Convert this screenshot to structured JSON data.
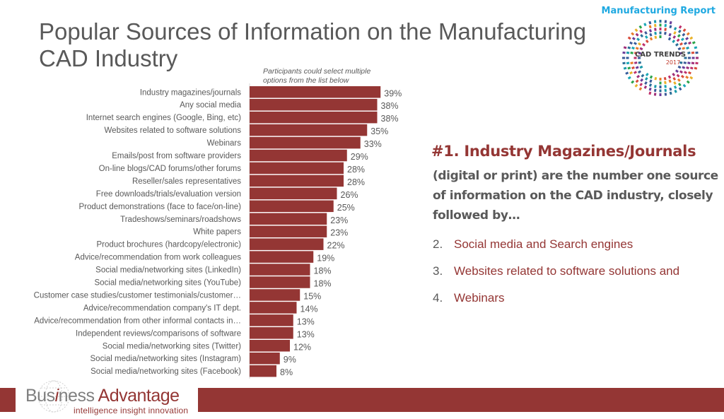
{
  "header": {
    "title": "Popular Sources of Information on the Manufacturing CAD Industry",
    "report_tag": "Manufacturing Report",
    "logo_line1": "CAD TRENDS",
    "logo_line2": "2017"
  },
  "note": {
    "line1": "Participants could select multiple",
    "line2": "options from the list below"
  },
  "colors": {
    "accent": "#943634",
    "text": "#595959",
    "tag": "#1fa9e1"
  },
  "chart_data": {
    "type": "bar",
    "orientation": "horizontal",
    "title": "Popular Sources of Information on the Manufacturing CAD Industry",
    "xlabel": "",
    "ylabel": "",
    "unit": "%",
    "xlim": [
      0,
      40
    ],
    "grid": false,
    "legend": "none",
    "categories": [
      "Industry magazines/journals",
      "Any social media",
      "Internet search engines (Google, Bing, etc)",
      "Websites related to software solutions",
      "Webinars",
      "Emails/post from software providers",
      "On-line blogs/CAD forums/other forums",
      "Reseller/sales representatives",
      "Free downloads/trials/evaluation version",
      "Product demonstrations (face to face/on-line)",
      "Tradeshows/seminars/roadshows",
      "White papers",
      "Product brochures (hardcopy/electronic)",
      "Advice/recommendation from work colleagues",
      "Social media/networking sites (LinkedIn)",
      "Social media/networking sites (YouTube)",
      "Customer case studies/customer testimonials/customer…",
      "Advice/recommendation company's IT dept.",
      "Advice/recommendation from other informal contacts in…",
      "Independent reviews/comparisons of software",
      "Social media/networking sites (Twitter)",
      "Social media/networking sites (Instagram)",
      "Social media/networking sites (Facebook)"
    ],
    "values": [
      39,
      38,
      38,
      35,
      33,
      29,
      28,
      28,
      26,
      25,
      23,
      23,
      22,
      19,
      18,
      18,
      15,
      14,
      13,
      13,
      12,
      9,
      8
    ],
    "value_labels": [
      "39%",
      "38%",
      "38%",
      "35%",
      "33%",
      "29%",
      "28%",
      "28%",
      "26%",
      "25%",
      "23%",
      "23%",
      "22%",
      "19%",
      "18%",
      "18%",
      "15%",
      "14%",
      "13%",
      "13%",
      "12%",
      "9%",
      "8%"
    ]
  },
  "summary": {
    "headline_rank": "#1.",
    "headline_text": "Industry Magazines/Journals",
    "body": "(digital or print) are the number one source of information on the CAD industry, closely followed by…",
    "list": [
      {
        "num": "2.",
        "text": "Social media and Search engines"
      },
      {
        "num": "3.",
        "text": "Websites related to software solutions and"
      },
      {
        "num": "4.",
        "text": "Webinars"
      }
    ]
  },
  "footer": {
    "brand_part1": "Bus",
    "brand_i": "i",
    "brand_part2": "ness ",
    "brand_part3": "Advantage",
    "tagline": "intelligence  insight  innovation"
  }
}
